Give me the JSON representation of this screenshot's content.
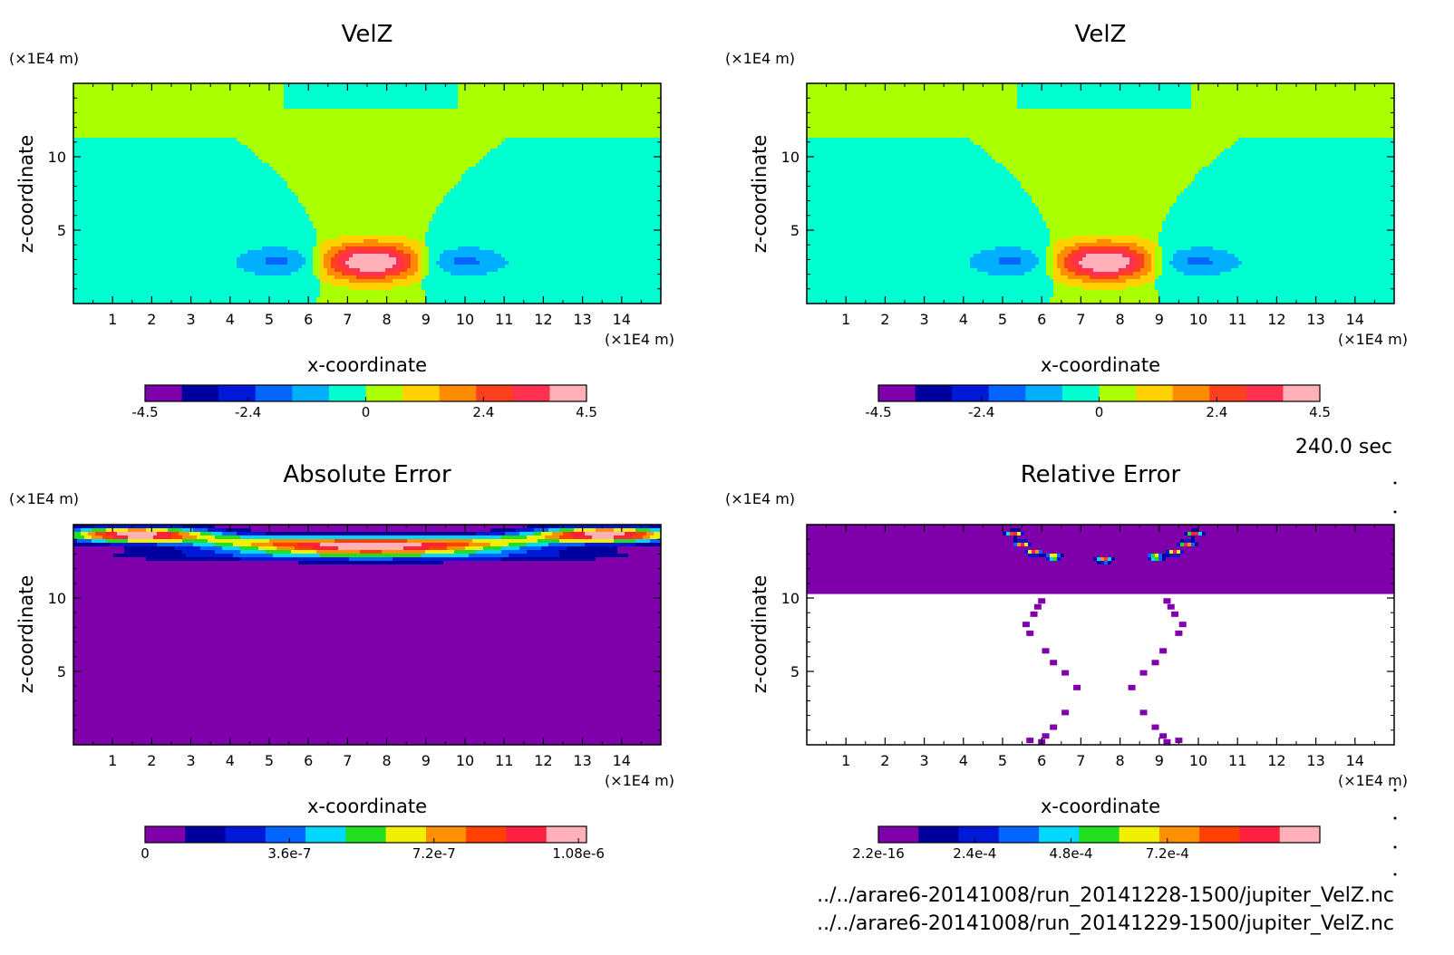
{
  "units": {
    "y_unit": "(×1E4 m)",
    "x_unit": "(×1E4 m)"
  },
  "time_label": "240.0 sec",
  "file_lines": [
    "../../arare6-20141008/run_20141228-1500/jupiter_VelZ.nc",
    "../../arare6-20141008/run_20141229-1500/jupiter_VelZ.nc"
  ],
  "chart_data": [
    {
      "type": "heatmap",
      "title": "VelZ",
      "xlabel": "x-coordinate",
      "ylabel": "z-coordinate",
      "xticks": [
        "1",
        "2",
        "3",
        "4",
        "5",
        "6",
        "7",
        "8",
        "9",
        "10",
        "11",
        "12",
        "13",
        "14"
      ],
      "yticks": [
        "5",
        "10"
      ],
      "xlim": [
        0,
        15
      ],
      "ylim": [
        0,
        15
      ],
      "field": "velz",
      "colorbar": {
        "colors": [
          "#7f00aa",
          "#00009e",
          "#0018d8",
          "#0066ff",
          "#00b0ff",
          "#00ffd0",
          "#aaff00",
          "#ffd200",
          "#ff8c00",
          "#ff4020",
          "#ff3050",
          "#ffb0b8"
        ],
        "tick_labels": [
          "-4.5",
          "-2.4",
          "0",
          "2.4",
          "4.5"
        ],
        "tick_values": [
          -4.5,
          -2.4,
          0,
          2.4,
          4.5
        ],
        "range": [
          -4.5,
          4.5
        ]
      }
    },
    {
      "type": "heatmap",
      "title": "VelZ",
      "xlabel": "x-coordinate",
      "ylabel": "z-coordinate",
      "xticks": [
        "1",
        "2",
        "3",
        "4",
        "5",
        "6",
        "7",
        "8",
        "9",
        "10",
        "11",
        "12",
        "13",
        "14"
      ],
      "yticks": [
        "5",
        "10"
      ],
      "xlim": [
        0,
        15
      ],
      "ylim": [
        0,
        15
      ],
      "field": "velz",
      "colorbar": {
        "colors": [
          "#7f00aa",
          "#00009e",
          "#0018d8",
          "#0066ff",
          "#00b0ff",
          "#00ffd0",
          "#aaff00",
          "#ffd200",
          "#ff8c00",
          "#ff4020",
          "#ff3050",
          "#ffb0b8"
        ],
        "tick_labels": [
          "-4.5",
          "-2.4",
          "0",
          "2.4",
          "4.5"
        ],
        "tick_values": [
          -4.5,
          -2.4,
          0,
          2.4,
          4.5
        ],
        "range": [
          -4.5,
          4.5
        ]
      }
    },
    {
      "type": "heatmap",
      "title": "Absolute Error",
      "xlabel": "x-coordinate",
      "ylabel": "z-coordinate",
      "xticks": [
        "1",
        "2",
        "3",
        "4",
        "5",
        "6",
        "7",
        "8",
        "9",
        "10",
        "11",
        "12",
        "13",
        "14"
      ],
      "yticks": [
        "5",
        "10"
      ],
      "xlim": [
        0,
        15
      ],
      "ylim": [
        0,
        15
      ],
      "field": "abserr",
      "colorbar": {
        "colors": [
          "#7f00aa",
          "#00009e",
          "#0018d8",
          "#0066ff",
          "#00d8ff",
          "#20e020",
          "#f0f000",
          "#ff9000",
          "#ff4000",
          "#ff2040",
          "#ffb0b8"
        ],
        "tick_labels": [
          "0",
          "3.6e-7",
          "7.2e-7",
          "1.08e-6"
        ],
        "tick_values": [
          0,
          3.6e-07,
          7.2e-07,
          1.08e-06
        ],
        "range": [
          0,
          1.1e-06
        ]
      }
    },
    {
      "type": "heatmap",
      "title": "Relative Error",
      "xlabel": "x-coordinate",
      "ylabel": "z-coordinate",
      "xticks": [
        "1",
        "2",
        "3",
        "4",
        "5",
        "6",
        "7",
        "8",
        "9",
        "10",
        "11",
        "12",
        "13",
        "14"
      ],
      "yticks": [
        "5",
        "10"
      ],
      "xlim": [
        0,
        15
      ],
      "ylim": [
        0,
        15
      ],
      "field": "relerr",
      "colorbar": {
        "colors": [
          "#7f00aa",
          "#00009e",
          "#0018d8",
          "#0066ff",
          "#00d8ff",
          "#20e020",
          "#f0f000",
          "#ff9000",
          "#ff4000",
          "#ff2040",
          "#ffb0b8"
        ],
        "tick_labels": [
          "2.2e-16",
          "2.4e-4",
          "4.8e-4",
          "7.2e-4"
        ],
        "tick_values": [
          2.2e-16,
          0.00024,
          0.00048,
          0.00072
        ],
        "range": [
          2.2e-16,
          0.0011
        ]
      }
    }
  ]
}
